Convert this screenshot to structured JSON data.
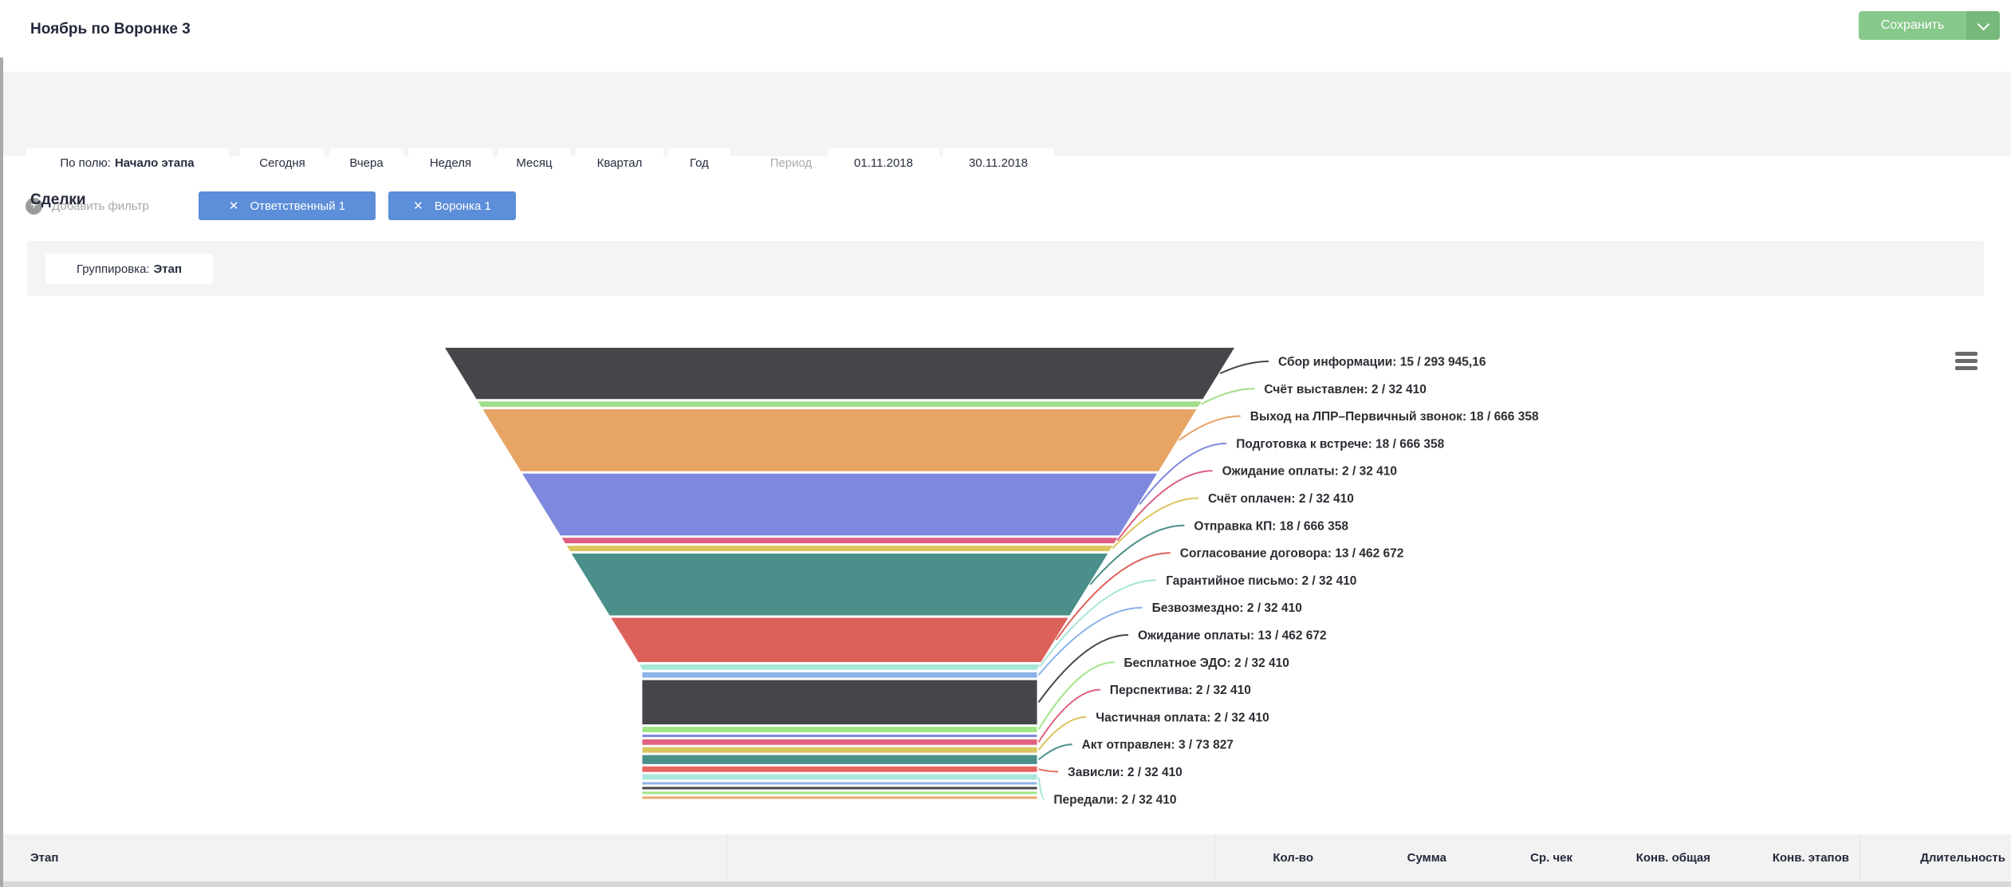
{
  "header": {
    "title": "Ноябрь по Воронке 3",
    "save_label": "Сохранить"
  },
  "filters": {
    "field_button": {
      "prefix": "По полю:",
      "value": "Начало этапа"
    },
    "period_buttons": [
      "Сегодня",
      "Вчера",
      "Неделя",
      "Месяц",
      "Квартал",
      "Год"
    ],
    "period_label": "Период",
    "date_from": "01.11.2018",
    "date_to": "30.11.2018",
    "add_filter_label": "Добавить фильтр",
    "chips": [
      "Ответственный 1",
      "Воронка 1"
    ]
  },
  "section": {
    "title": "Сделки"
  },
  "grouping": {
    "prefix": "Группировка:",
    "value": "Этап"
  },
  "table_header": {
    "stage": "Этап",
    "columns": [
      "Кол-во",
      "Сумма",
      "Ср. чек",
      "Конв. общая",
      "Конв. этапов",
      "Длительность"
    ]
  },
  "colors": {
    "accent_blue": "#5c8ed9",
    "save_green": "#87c98b",
    "save_green_dark": "#76b97a",
    "bar_gray": "#f4f4f5",
    "text_navy": "#23283b"
  },
  "chart_data": {
    "type": "funnel",
    "legend_position": "right",
    "stages": [
      {
        "name": "Сбор информации",
        "count": 15,
        "sum": "293 945,16",
        "color": "#45464a",
        "labeled": true
      },
      {
        "name": "Счёт выставлен",
        "count": 2,
        "sum": "32 410",
        "color": "#a0dd88",
        "labeled": true
      },
      {
        "name": "Выход на ЛПР–Первичный звонок",
        "count": 18,
        "sum": "666 358",
        "color": "#e7a464",
        "labeled": true
      },
      {
        "name": "Подготовка к встрече",
        "count": 18,
        "sum": "666 358",
        "color": "#7d88de",
        "labeled": true
      },
      {
        "name": "Ожидание оплаты",
        "count": 2,
        "sum": "32 410",
        "color": "#dd6080",
        "labeled": true
      },
      {
        "name": "Счёт оплачен",
        "count": 2,
        "sum": "32 410",
        "color": "#dbc55e",
        "labeled": true
      },
      {
        "name": "Отправка КП",
        "count": 18,
        "sum": "666 358",
        "color": "#4a8f89",
        "labeled": true
      },
      {
        "name": "Согласование договора",
        "count": 13,
        "sum": "462 672",
        "color": "#dc615b",
        "labeled": true
      },
      {
        "name": "Гарантийное письмо",
        "count": 2,
        "sum": "32 410",
        "color": "#a8e6da",
        "labeled": true
      },
      {
        "name": "Безвозмездно",
        "count": 2,
        "sum": "32 410",
        "color": "#8db3e8",
        "labeled": true
      },
      {
        "name": "Ожидание оплаты",
        "count": 13,
        "sum": "462 672",
        "color": "#45464a",
        "labeled": true
      },
      {
        "name": "Бесплатное ЭДО",
        "count": 2,
        "sum": "32 410",
        "color": "#9fe687",
        "labeled": true
      },
      {
        "name": "",
        "count": 1,
        "sum": "",
        "color": "#7d88de",
        "labeled": false
      },
      {
        "name": "Перспектива",
        "count": 2,
        "sum": "32 410",
        "color": "#e0627f",
        "labeled": true
      },
      {
        "name": "Частичная оплата",
        "count": 2,
        "sum": "32 410",
        "color": "#dbc55e",
        "labeled": true
      },
      {
        "name": "Акт отправлен",
        "count": 3,
        "sum": "73 827",
        "color": "#4a8f89",
        "labeled": true
      },
      {
        "name": "Зависли",
        "count": 2,
        "sum": "32 410",
        "color": "#e8655f",
        "labeled": true
      },
      {
        "name": "Передали",
        "count": 2,
        "sum": "32 410",
        "color": "#a8e6da",
        "labeled": true
      },
      {
        "name": "",
        "count": 1,
        "sum": "",
        "color": "#8db3e8",
        "labeled": false
      },
      {
        "name": "",
        "count": 1,
        "sum": "",
        "color": "#45464a",
        "labeled": false
      },
      {
        "name": "",
        "count": 1,
        "sum": "",
        "color": "#9fe687",
        "labeled": false
      },
      {
        "name": "",
        "count": 1,
        "sum": "",
        "color": "#ecaa6e",
        "labeled": false
      }
    ]
  }
}
